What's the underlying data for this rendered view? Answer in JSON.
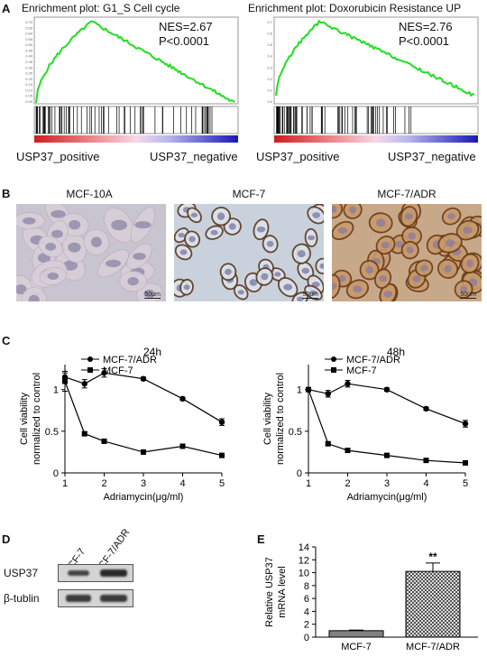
{
  "panels": {
    "A": "A",
    "B": "B",
    "C": "C",
    "D": "D",
    "E": "E"
  },
  "panel_a": [
    {
      "title": "Enrichment plot: G1_S Cell cycle",
      "nes": "NES=2.67",
      "p": "P<0.0001",
      "pos_label": "USP37_positive",
      "neg_label": "USP37_negative",
      "yticks": [
        "0.70",
        "0.65",
        "0.60",
        "0.55",
        "0.50",
        "0.45",
        "0.40",
        "0.35",
        "0.30",
        "0.25",
        "0.20",
        "0.15",
        "0.10",
        "0.05",
        "0.00"
      ]
    },
    {
      "title": "Enrichment plot: Doxorubicin Resistance UP",
      "nes": "NES=2.76",
      "p": "P<0.0001",
      "pos_label": "USP37_positive",
      "neg_label": "USP37_negative",
      "yticks": [
        "0.7",
        "0.6",
        "0.5",
        "0.4",
        "0.3",
        "0.2",
        "0.1",
        "0.0"
      ]
    }
  ],
  "panel_b": [
    {
      "title": "MCF-10A",
      "scale": "50μm"
    },
    {
      "title": "MCF-7",
      "scale": "50μm"
    },
    {
      "title": "MCF-7/ADR",
      "scale": "50μm"
    }
  ],
  "panel_d": {
    "lanes": [
      "MCF-7",
      "MCF-7/ADR"
    ],
    "rows": [
      "USP37",
      "β-tublin"
    ]
  },
  "colors": {
    "gsea_line": "#22dd22",
    "bar_fill": "#808080",
    "stain": "#8a5a2e"
  },
  "chart_data": [
    {
      "type": "line",
      "title": "24h",
      "xlabel": "Adriamycin(μg/ml)",
      "ylabel": [
        "Cell viability",
        "normalized to control"
      ],
      "xlim": [
        1,
        5
      ],
      "ylim": [
        0,
        1.3
      ],
      "xticks": [
        "1",
        "2",
        "3",
        "4",
        "5"
      ],
      "yticks": [
        "0",
        "0.5",
        "1"
      ],
      "legend_position": "top",
      "series": [
        {
          "name": "MCF-7/ADR",
          "marker": "circle",
          "x": [
            1,
            1.5,
            2,
            3,
            4,
            5
          ],
          "y": [
            1.15,
            1.07,
            1.2,
            1.13,
            0.89,
            0.61
          ],
          "err": [
            0.05,
            0.05,
            0.05,
            0.02,
            0.02,
            0.04
          ]
        },
        {
          "name": "MCF-7",
          "marker": "square",
          "x": [
            1,
            1.5,
            2,
            3,
            4,
            5
          ],
          "y": [
            1.1,
            0.47,
            0.38,
            0.25,
            0.32,
            0.21
          ],
          "err": [
            0.12,
            0.02,
            0.02,
            0.02,
            0.02,
            0.02
          ]
        }
      ]
    },
    {
      "type": "line",
      "title": "48h",
      "xlabel": "Adriamycin(μg/ml)",
      "ylabel": [
        "Cell viability",
        "normalized to control"
      ],
      "xlim": [
        1,
        5
      ],
      "ylim": [
        0,
        1.3
      ],
      "xticks": [
        "1",
        "2",
        "3",
        "4",
        "5"
      ],
      "yticks": [
        "0",
        "0.5",
        "1"
      ],
      "legend_position": "top",
      "series": [
        {
          "name": "MCF-7/ADR",
          "marker": "circle",
          "x": [
            1,
            1.5,
            2,
            3,
            4,
            5
          ],
          "y": [
            1.0,
            0.95,
            1.07,
            1.0,
            0.77,
            0.59
          ],
          "err": [
            0.02,
            0.04,
            0.04,
            0.02,
            0.02,
            0.04
          ]
        },
        {
          "name": "MCF-7",
          "marker": "square",
          "x": [
            1,
            1.5,
            2,
            3,
            4,
            5
          ],
          "y": [
            1.0,
            0.35,
            0.27,
            0.21,
            0.15,
            0.12
          ],
          "err": [
            0.02,
            0.02,
            0.02,
            0.02,
            0.02,
            0.02
          ]
        }
      ]
    },
    {
      "type": "bar",
      "categories": [
        "MCF-7",
        "MCF-7/ADR"
      ],
      "values": [
        1.0,
        10.2
      ],
      "err": [
        0.1,
        1.3
      ],
      "ylabel": [
        "Relative USP37",
        "mRNA level"
      ],
      "ylim": [
        0,
        14
      ],
      "yticks": [
        "0",
        "2",
        "4",
        "6",
        "8",
        "10",
        "12",
        "14"
      ],
      "annotation": "**"
    }
  ]
}
